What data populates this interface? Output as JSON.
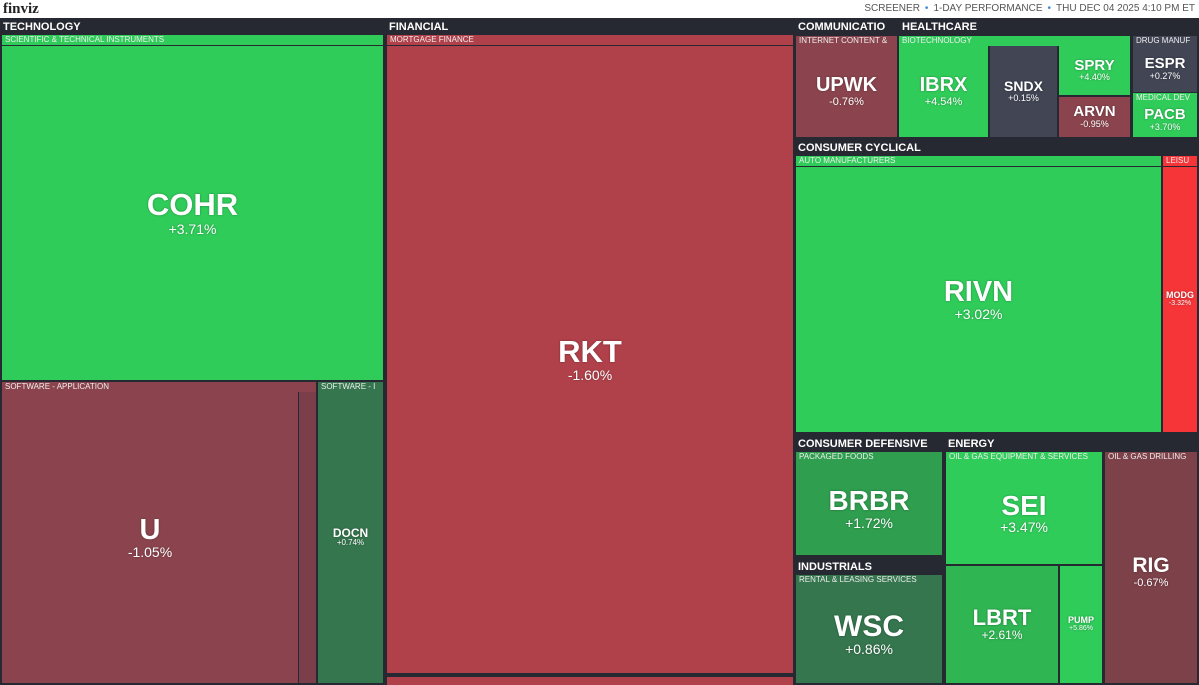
{
  "header": {
    "logo": "finviz",
    "nav": [
      "SCREENER",
      "1-DAY PERFORMANCE",
      "THU DEC 04 2025 4:10 PM ET"
    ]
  },
  "sectors": [
    {
      "name": "TECHNOLOGY",
      "industries": [
        {
          "name": "SCIENTIFIC & TECHNICAL INSTRUMENTS",
          "stocks": [
            {
              "ticker": "COHR",
              "change": "+3.71%"
            }
          ]
        },
        {
          "name": "SOFTWARE - APPLICATION",
          "stocks": [
            {
              "ticker": "U",
              "change": "-1.05%"
            }
          ]
        },
        {
          "name": "SOFTWARE - I",
          "stocks": [
            {
              "ticker": "DOCN",
              "change": "+0.74%"
            }
          ]
        }
      ]
    },
    {
      "name": "FINANCIAL",
      "industries": [
        {
          "name": "MORTGAGE FINANCE",
          "stocks": [
            {
              "ticker": "RKT",
              "change": "-1.60%"
            }
          ]
        }
      ]
    },
    {
      "name": "COMMUNICATIO",
      "industries": [
        {
          "name": "INTERNET CONTENT &",
          "stocks": [
            {
              "ticker": "UPWK",
              "change": "-0.76%"
            }
          ]
        }
      ]
    },
    {
      "name": "HEALTHCARE",
      "industries": [
        {
          "name": "BIOTECHNOLOGY",
          "stocks": [
            {
              "ticker": "IBRX",
              "change": "+4.54%"
            },
            {
              "ticker": "SNDX",
              "change": "+0.15%"
            },
            {
              "ticker": "SPRY",
              "change": "+4.40%"
            },
            {
              "ticker": "ARVN",
              "change": "-0.95%"
            }
          ]
        },
        {
          "name": "DRUG MANUF",
          "stocks": [
            {
              "ticker": "ESPR",
              "change": "+0.27%"
            }
          ]
        },
        {
          "name": "MEDICAL DEV",
          "stocks": [
            {
              "ticker": "PACB",
              "change": "+3.70%"
            }
          ]
        }
      ]
    },
    {
      "name": "CONSUMER CYCLICAL",
      "industries": [
        {
          "name": "AUTO MANUFACTURERS",
          "stocks": [
            {
              "ticker": "RIVN",
              "change": "+3.02%"
            }
          ]
        },
        {
          "name": "LEISU",
          "stocks": [
            {
              "ticker": "MODG",
              "change": "-3.32%"
            }
          ]
        }
      ]
    },
    {
      "name": "CONSUMER DEFENSIVE",
      "industries": [
        {
          "name": "PACKAGED FOODS",
          "stocks": [
            {
              "ticker": "BRBR",
              "change": "+1.72%"
            }
          ]
        }
      ]
    },
    {
      "name": "INDUSTRIALS",
      "industries": [
        {
          "name": "RENTAL & LEASING SERVICES",
          "stocks": [
            {
              "ticker": "WSC",
              "change": "+0.86%"
            }
          ]
        }
      ]
    },
    {
      "name": "ENERGY",
      "industries": [
        {
          "name": "OIL & GAS EQUIPMENT & SERVICES",
          "stocks": [
            {
              "ticker": "SEI",
              "change": "+3.47%"
            },
            {
              "ticker": "LBRT",
              "change": "+2.61%"
            },
            {
              "ticker": "PUMP",
              "change": "+5.86%"
            }
          ]
        },
        {
          "name": "OIL & GAS DRILLING",
          "stocks": [
            {
              "ticker": "RIG",
              "change": "-0.67%"
            }
          ]
        }
      ]
    }
  ]
}
